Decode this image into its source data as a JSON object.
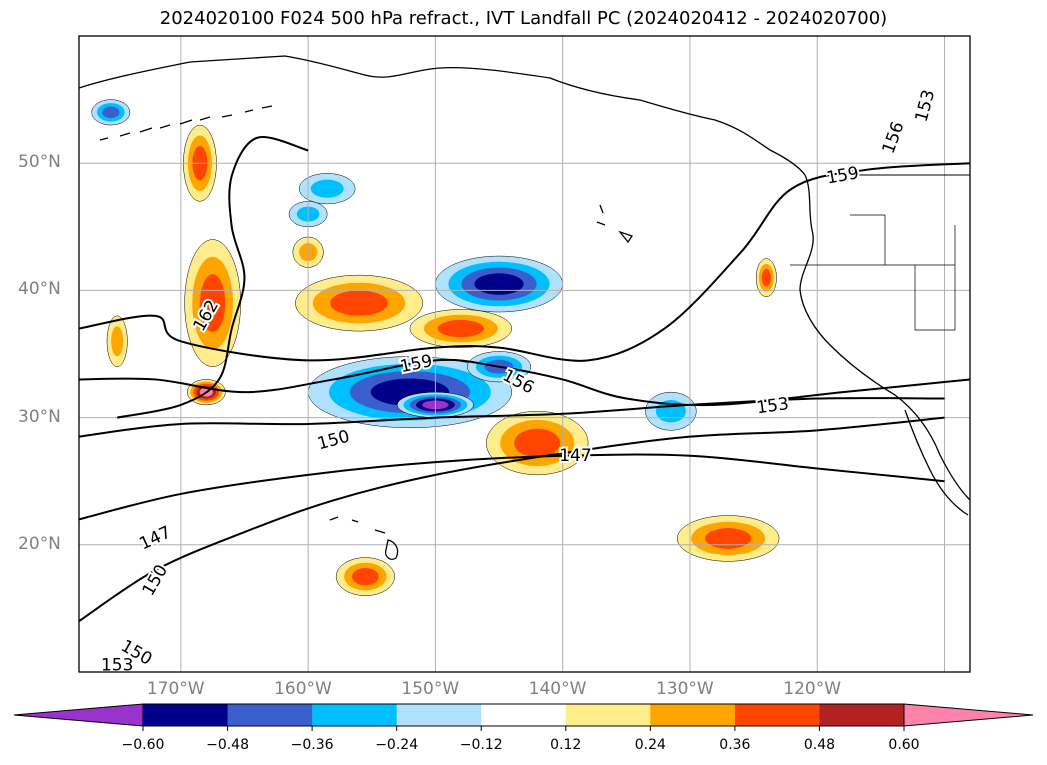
{
  "title": "2024020100 F024 500 hPa refract., IVT Landfall PC (2024020412 - 2024020700)",
  "axes": {
    "lon_labels": [
      "170°W",
      "160°W",
      "150°W",
      "140°W",
      "130°W",
      "120°W"
    ],
    "lat_labels": [
      "50°N",
      "40°N",
      "30°N",
      "20°N"
    ],
    "lon_range": [
      -178,
      -108
    ],
    "lat_range": [
      10,
      60
    ],
    "grid": true
  },
  "colorbar": {
    "ticks": [
      "−0.60",
      "−0.48",
      "−0.36",
      "−0.24",
      "−0.12",
      "0.12",
      "0.24",
      "0.36",
      "0.48",
      "0.60"
    ],
    "colors": [
      "#9a32cd",
      "#00008b",
      "#3a5fcd",
      "#00bfff",
      "#b0e2ff",
      "#ffffff",
      "#ffec8b",
      "#ffa500",
      "#ff4500",
      "#b22222",
      "#ff82ab"
    ],
    "extend": "both"
  },
  "contour_labels": [
    {
      "text": "162",
      "lon": -168.0,
      "lat": 38.0,
      "rot": -60
    },
    {
      "text": "159",
      "lon": -151.5,
      "lat": 34.2,
      "rot": -12
    },
    {
      "text": "156",
      "lon": -143.5,
      "lat": 32.8,
      "rot": 28
    },
    {
      "text": "153",
      "lon": -123.5,
      "lat": 30.9,
      "rot": -8
    },
    {
      "text": "150",
      "lon": -158.0,
      "lat": 28.2,
      "rot": -15
    },
    {
      "text": "147",
      "lon": -139.0,
      "lat": 27.0,
      "rot": 0
    },
    {
      "text": "147",
      "lon": -172.0,
      "lat": 20.5,
      "rot": -25
    },
    {
      "text": "150",
      "lon": -172.0,
      "lat": 17.2,
      "rot": -60
    },
    {
      "text": "150",
      "lon": -173.5,
      "lat": 11.5,
      "rot": 30
    },
    {
      "text": "153",
      "lon": -175.0,
      "lat": 10.5,
      "rot": 0
    },
    {
      "text": "159",
      "lon": -118.0,
      "lat": 49.0,
      "rot": -10
    },
    {
      "text": "156",
      "lon": -114.0,
      "lat": 52.0,
      "rot": -70
    },
    {
      "text": "153",
      "lon": -111.5,
      "lat": 54.5,
      "rot": -75
    }
  ],
  "chart_data": {
    "type": "map",
    "field": "500 hPa refractivity IVT landfall principal component",
    "units": "",
    "blobs": [
      {
        "lon": -152,
        "lat": 32,
        "rx": 8,
        "ry": 2.8,
        "value": -0.5
      },
      {
        "lon": -150,
        "lat": 31,
        "rx": 3,
        "ry": 1,
        "value": -0.62
      },
      {
        "lon": -145,
        "lat": 34,
        "rx": 2.5,
        "ry": 1.2,
        "value": -0.45
      },
      {
        "lon": -145,
        "lat": 40.5,
        "rx": 5,
        "ry": 2.2,
        "value": -0.5
      },
      {
        "lon": -131.5,
        "lat": 30.5,
        "rx": 2,
        "ry": 1.5,
        "value": -0.35
      },
      {
        "lon": -158.5,
        "lat": 48,
        "rx": 2.2,
        "ry": 1.2,
        "value": -0.32
      },
      {
        "lon": -160,
        "lat": 46,
        "rx": 1.5,
        "ry": 1,
        "value": -0.24
      },
      {
        "lon": -175.5,
        "lat": 54,
        "rx": 1.5,
        "ry": 1,
        "value": -0.4
      },
      {
        "lon": -167.5,
        "lat": 39,
        "rx": 2.2,
        "ry": 5,
        "value": 0.42
      },
      {
        "lon": -168,
        "lat": 32,
        "rx": 1.5,
        "ry": 1,
        "value": 0.6
      },
      {
        "lon": -156,
        "lat": 39,
        "rx": 5,
        "ry": 2.2,
        "value": 0.4
      },
      {
        "lon": -148,
        "lat": 37,
        "rx": 4,
        "ry": 1.5,
        "value": 0.46
      },
      {
        "lon": -142,
        "lat": 28,
        "rx": 4,
        "ry": 2.5,
        "value": 0.4
      },
      {
        "lon": -127,
        "lat": 20.5,
        "rx": 4,
        "ry": 1.8,
        "value": 0.46
      },
      {
        "lon": -155.5,
        "lat": 17.5,
        "rx": 2.3,
        "ry": 1.5,
        "value": 0.4
      },
      {
        "lon": -168.5,
        "lat": 50,
        "rx": 1.3,
        "ry": 3,
        "value": 0.4
      },
      {
        "lon": -175,
        "lat": 36,
        "rx": 0.8,
        "ry": 2,
        "value": 0.3
      },
      {
        "lon": -124,
        "lat": 41,
        "rx": 0.8,
        "ry": 1.5,
        "value": 0.36
      },
      {
        "lon": -160,
        "lat": 43,
        "rx": 1.2,
        "ry": 1.2,
        "value": 0.35
      }
    ],
    "contours": [
      {
        "level": 147,
        "points": [
          [
            -178,
            22
          ],
          [
            -170,
            24
          ],
          [
            -160,
            25.5
          ],
          [
            -150,
            26.5
          ],
          [
            -140,
            27
          ],
          [
            -130,
            27
          ],
          [
            -120,
            26
          ],
          [
            -110,
            25
          ]
        ]
      },
      {
        "level": 150,
        "points": [
          [
            -178,
            14
          ],
          [
            -172,
            18
          ],
          [
            -165,
            21
          ],
          [
            -158,
            23.5
          ],
          [
            -150,
            25.5
          ],
          [
            -140,
            27.2
          ],
          [
            -130,
            28.5
          ],
          [
            -120,
            29
          ],
          [
            -110,
            30
          ]
        ]
      },
      {
        "level": 153,
        "points": [
          [
            -178,
            28.5
          ],
          [
            -170,
            29.5
          ],
          [
            -160,
            29.5
          ],
          [
            -150,
            30
          ],
          [
            -140,
            30.3
          ],
          [
            -130,
            31
          ],
          [
            -120,
            31.5
          ],
          [
            -110,
            31.5
          ]
        ]
      },
      {
        "level": 156,
        "points": [
          [
            -178,
            33
          ],
          [
            -172,
            33
          ],
          [
            -165,
            32
          ],
          [
            -158,
            33
          ],
          [
            -150,
            34.5
          ],
          [
            -145,
            34
          ],
          [
            -140,
            33
          ],
          [
            -135,
            31.5
          ],
          [
            -128,
            31
          ],
          [
            -118,
            32
          ],
          [
            -108,
            33
          ]
        ]
      },
      {
        "level": 159,
        "points": [
          [
            -178,
            37
          ],
          [
            -172,
            38
          ],
          [
            -170,
            36
          ],
          [
            -160,
            34.5
          ],
          [
            -150,
            35.5
          ],
          [
            -145,
            35.5
          ],
          [
            -138,
            34.5
          ],
          [
            -132,
            37
          ],
          [
            -126,
            43
          ],
          [
            -122,
            48
          ],
          [
            -116,
            49.5
          ],
          [
            -108,
            50
          ]
        ]
      },
      {
        "level": 162,
        "points": [
          [
            -175,
            30
          ],
          [
            -170,
            31
          ],
          [
            -167,
            33
          ],
          [
            -166,
            37
          ],
          [
            -165,
            41
          ],
          [
            -166,
            45
          ],
          [
            -166,
            49
          ],
          [
            -164,
            52
          ],
          [
            -160,
            51
          ]
        ]
      }
    ]
  }
}
